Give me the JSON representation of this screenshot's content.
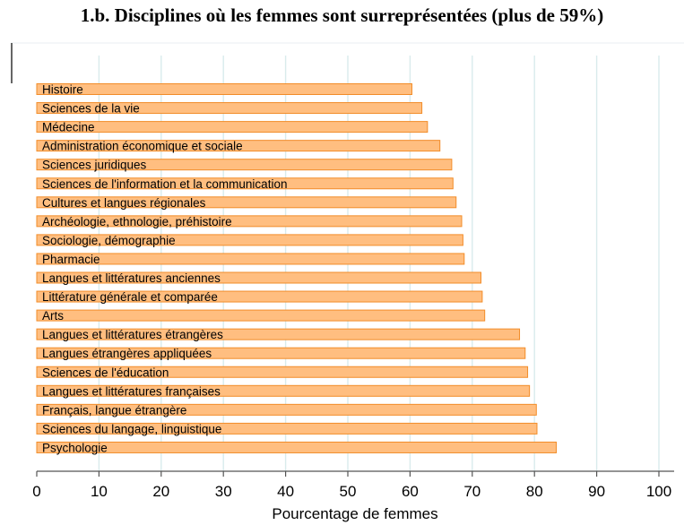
{
  "chart_data": {
    "type": "bar",
    "orientation": "horizontal",
    "title": "1.b. Disciplines où les femmes sont surreprésentées (plus de 59%)",
    "xlabel": "Pourcentage de femmes",
    "ylabel": "",
    "xlim": [
      0,
      100
    ],
    "xticks": [
      0,
      10,
      20,
      30,
      40,
      50,
      60,
      70,
      80,
      90,
      100
    ],
    "grid": true,
    "categories": [
      "Histoire",
      "Sciences de la vie",
      "Médecine",
      "Administration économique et sociale",
      "Sciences juridiques",
      "Sciences de l'information et la communication",
      "Cultures et langues régionales",
      "Archéologie, ethnologie, préhistoire",
      "Sociologie, démographie",
      "Pharmacie",
      "Langues et littératures anciennes",
      "Littérature générale et comparée",
      "Arts",
      "Langues et littératures étrangères",
      "Langues étrangères appliquées",
      "Sciences de l'éducation",
      "Langues et littératures françaises",
      "Français, langue étrangère",
      "Sciences du langage, linguistique",
      "Psychologie"
    ],
    "values": [
      60.3,
      61.9,
      62.8,
      64.8,
      66.7,
      66.9,
      67.4,
      68.3,
      68.5,
      68.7,
      71.4,
      71.6,
      72.0,
      77.6,
      78.5,
      78.9,
      79.2,
      80.3,
      80.4,
      83.5
    ],
    "colors": {
      "bar_fill": "#ffbe80",
      "bar_stroke": "#f28c28",
      "grid": "#d9ebec"
    }
  }
}
